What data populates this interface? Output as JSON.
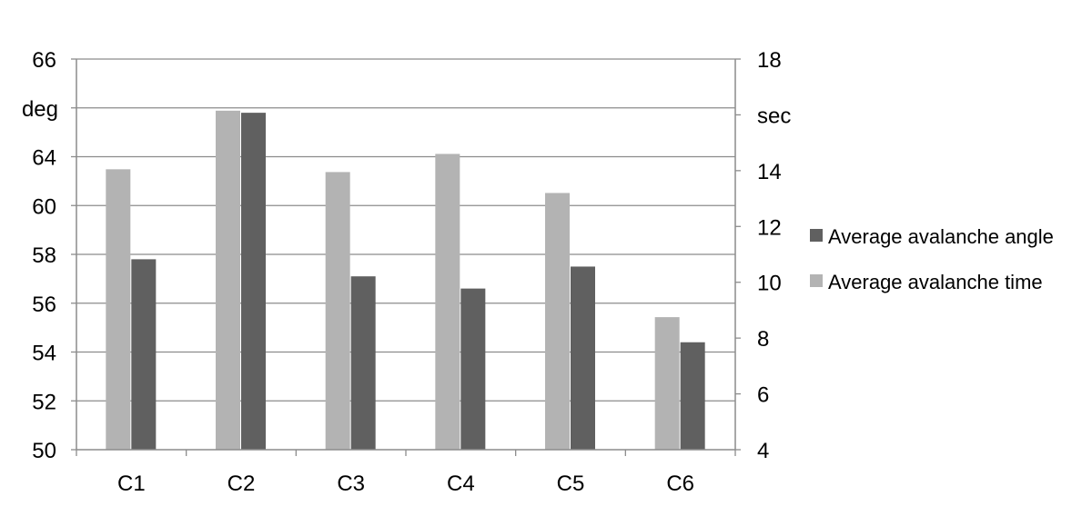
{
  "chart_data": {
    "type": "bar",
    "categories": [
      "C1",
      "C2",
      "C3",
      "C4",
      "C5",
      "C6"
    ],
    "series": [
      {
        "name": "Average avalanche time",
        "axis": "right",
        "color": "#b3b3b3",
        "values": [
          14.05,
          16.15,
          13.95,
          14.6,
          13.2,
          8.75
        ]
      },
      {
        "name": "Average avalanche angle",
        "axis": "left",
        "color": "#606060",
        "values": [
          57.8,
          63.8,
          57.1,
          56.6,
          57.5,
          54.4
        ]
      }
    ],
    "left_axis": {
      "unit": "deg",
      "ylim": [
        50,
        66
      ],
      "tick_labels": [
        "50",
        "52",
        "54",
        "56",
        "58",
        "60",
        "64",
        "deg",
        "66"
      ]
    },
    "right_axis": {
      "unit": "sec",
      "ylim": [
        4,
        18
      ],
      "tick_labels": [
        "4",
        "6",
        "8",
        "10",
        "12",
        "14",
        "sec",
        "18"
      ]
    },
    "legend": {
      "position": "right",
      "entries": [
        "Average avalanche angle",
        "Average avalanche time"
      ]
    },
    "grid": true,
    "colors": {
      "time": "#b3b3b3",
      "angle": "#606060",
      "gridline": "#8c8c8c",
      "axis": "#8c8c8c"
    }
  }
}
